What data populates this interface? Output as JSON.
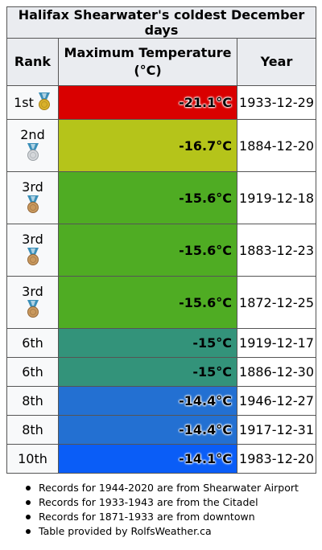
{
  "title": "Halifax Shearwater's coldest December days",
  "headers": {
    "rank": "Rank",
    "temp": "Maximum Temperature (°C)",
    "year": "Year"
  },
  "rows": [
    {
      "rank": "1st",
      "medal": "gold",
      "temp": "-21.1°C",
      "date": "1933-12-29",
      "color": "#d90000"
    },
    {
      "rank": "2nd",
      "medal": "silver",
      "temp": "-16.7°C",
      "date": "1884-12-20",
      "color": "#b5c41a"
    },
    {
      "rank": "3rd",
      "medal": "bronze",
      "temp": "-15.6°C",
      "date": "1919-12-18",
      "color": "#4fac23"
    },
    {
      "rank": "3rd",
      "medal": "bronze",
      "temp": "-15.6°C",
      "date": "1883-12-23",
      "color": "#4fac23"
    },
    {
      "rank": "3rd",
      "medal": "bronze",
      "temp": "-15.6°C",
      "date": "1872-12-25",
      "color": "#4fac23"
    },
    {
      "rank": "6th",
      "medal": "",
      "temp": "-15°C",
      "date": "1919-12-17",
      "color": "#33937a"
    },
    {
      "rank": "6th",
      "medal": "",
      "temp": "-15°C",
      "date": "1886-12-30",
      "color": "#33937a"
    },
    {
      "rank": "8th",
      "medal": "",
      "temp": "-14.4°C",
      "date": "1946-12-27",
      "color": "#2370d2"
    },
    {
      "rank": "8th",
      "medal": "",
      "temp": "-14.4°C",
      "date": "1917-12-31",
      "color": "#2370d2"
    },
    {
      "rank": "10th",
      "medal": "",
      "temp": "-14.1°C",
      "date": "1983-12-20",
      "color": "#0a5df7"
    }
  ],
  "notes": [
    "Records for 1944-2020 are from Shearwater Airport",
    "Records for 1933-1943 are from the Citadel",
    "Records for 1871-1933 are from downtown",
    "Table provided by RolfsWeather.ca"
  ]
}
